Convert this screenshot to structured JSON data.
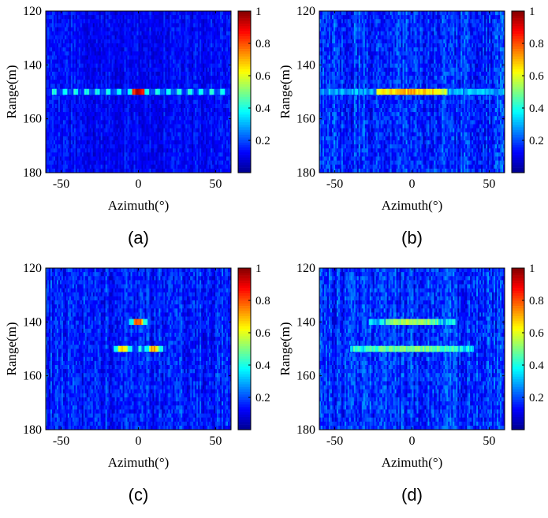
{
  "colormap": [
    "#00008f",
    "#0000ff",
    "#0080ff",
    "#00ffff",
    "#80ff80",
    "#ffff00",
    "#ff8000",
    "#ff0000",
    "#800000"
  ],
  "noise_color": "#1030e8",
  "chart_data": [
    {
      "type": "heatmap",
      "caption": "(a)",
      "xlabel": "Azimuth(°)",
      "ylabel": "Range(m)",
      "xlim": [
        -60,
        60
      ],
      "ylim": [
        120,
        180
      ],
      "y_inverted": true,
      "x_ticks": [
        -50,
        0,
        50
      ],
      "y_ticks": [
        120,
        140,
        160,
        180
      ],
      "colorbar": {
        "range": [
          0,
          1
        ],
        "ticks": [
          0.2,
          0.4,
          0.6,
          0.8,
          1
        ]
      },
      "noise_level": 0.12,
      "targets": [
        {
          "range": 150,
          "azimuth": 0,
          "peak": 1.0,
          "mainlobe_width_deg": 8,
          "sidelobe_level": 0.35,
          "sidelobe_extent_deg": [
            -60,
            60
          ],
          "sidelobe_period_deg": 7
        }
      ]
    },
    {
      "type": "heatmap",
      "caption": "(b)",
      "xlabel": "Azimuth(°)",
      "ylabel": "Range(m)",
      "xlim": [
        -60,
        60
      ],
      "ylim": [
        120,
        180
      ],
      "y_inverted": true,
      "x_ticks": [
        -50,
        0,
        50
      ],
      "y_ticks": [
        120,
        140,
        160,
        180
      ],
      "colorbar": {
        "range": [
          0,
          1
        ],
        "ticks": [
          0.2,
          0.4,
          0.6,
          0.8,
          1
        ]
      },
      "noise_level": 0.18,
      "targets": [
        {
          "range": 150,
          "azimuth": 0,
          "peak": 0.75,
          "mainlobe_width_deg": 46,
          "sidelobe_level": 0.3,
          "sidelobe_extent_deg": [
            -60,
            60
          ],
          "sidelobe_period_deg": 0
        }
      ]
    },
    {
      "type": "heatmap",
      "caption": "(c)",
      "xlabel": "Azimuth(°)",
      "ylabel": "Range(m)",
      "xlim": [
        -60,
        60
      ],
      "ylim": [
        120,
        180
      ],
      "y_inverted": true,
      "x_ticks": [
        -50,
        0,
        50
      ],
      "y_ticks": [
        120,
        140,
        160,
        180
      ],
      "colorbar": {
        "range": [
          0,
          1
        ],
        "ticks": [
          0.2,
          0.4,
          0.6,
          0.8,
          1
        ]
      },
      "noise_level": 0.16,
      "targets": [
        {
          "range": 140,
          "azimuth": 0,
          "peak": 0.85,
          "mainlobe_width_deg": 6,
          "sidelobe_level": 0.35,
          "sidelobe_extent_deg": [
            -8,
            8
          ],
          "sidelobe_period_deg": 7
        },
        {
          "range": 150,
          "azimuth": -10,
          "peak": 0.75,
          "mainlobe_width_deg": 6,
          "sidelobe_level": 0.35,
          "sidelobe_extent_deg": [
            -16,
            2
          ],
          "sidelobe_period_deg": 7
        },
        {
          "range": 150,
          "azimuth": 10,
          "peak": 0.78,
          "mainlobe_width_deg": 6,
          "sidelobe_level": 0.35,
          "sidelobe_extent_deg": [
            2,
            18
          ],
          "sidelobe_period_deg": 7
        }
      ]
    },
    {
      "type": "heatmap",
      "caption": "(d)",
      "xlabel": "Azimuth(°)",
      "ylabel": "Range(m)",
      "xlim": [
        -60,
        60
      ],
      "ylim": [
        120,
        180
      ],
      "y_inverted": true,
      "x_ticks": [
        -50,
        0,
        50
      ],
      "y_ticks": [
        120,
        140,
        160,
        180
      ],
      "colorbar": {
        "range": [
          0,
          1
        ],
        "ticks": [
          0.2,
          0.4,
          0.6,
          0.8,
          1
        ]
      },
      "noise_level": 0.18,
      "targets": [
        {
          "range": 140,
          "azimuth": 0,
          "peak": 0.6,
          "mainlobe_width_deg": 34,
          "sidelobe_level": 0.35,
          "sidelobe_extent_deg": [
            -28,
            28
          ],
          "sidelobe_period_deg": 0
        },
        {
          "range": 150,
          "azimuth": 0,
          "peak": 0.55,
          "mainlobe_width_deg": 60,
          "sidelobe_level": 0.4,
          "sidelobe_extent_deg": [
            -40,
            40
          ],
          "sidelobe_period_deg": 0
        }
      ]
    }
  ]
}
